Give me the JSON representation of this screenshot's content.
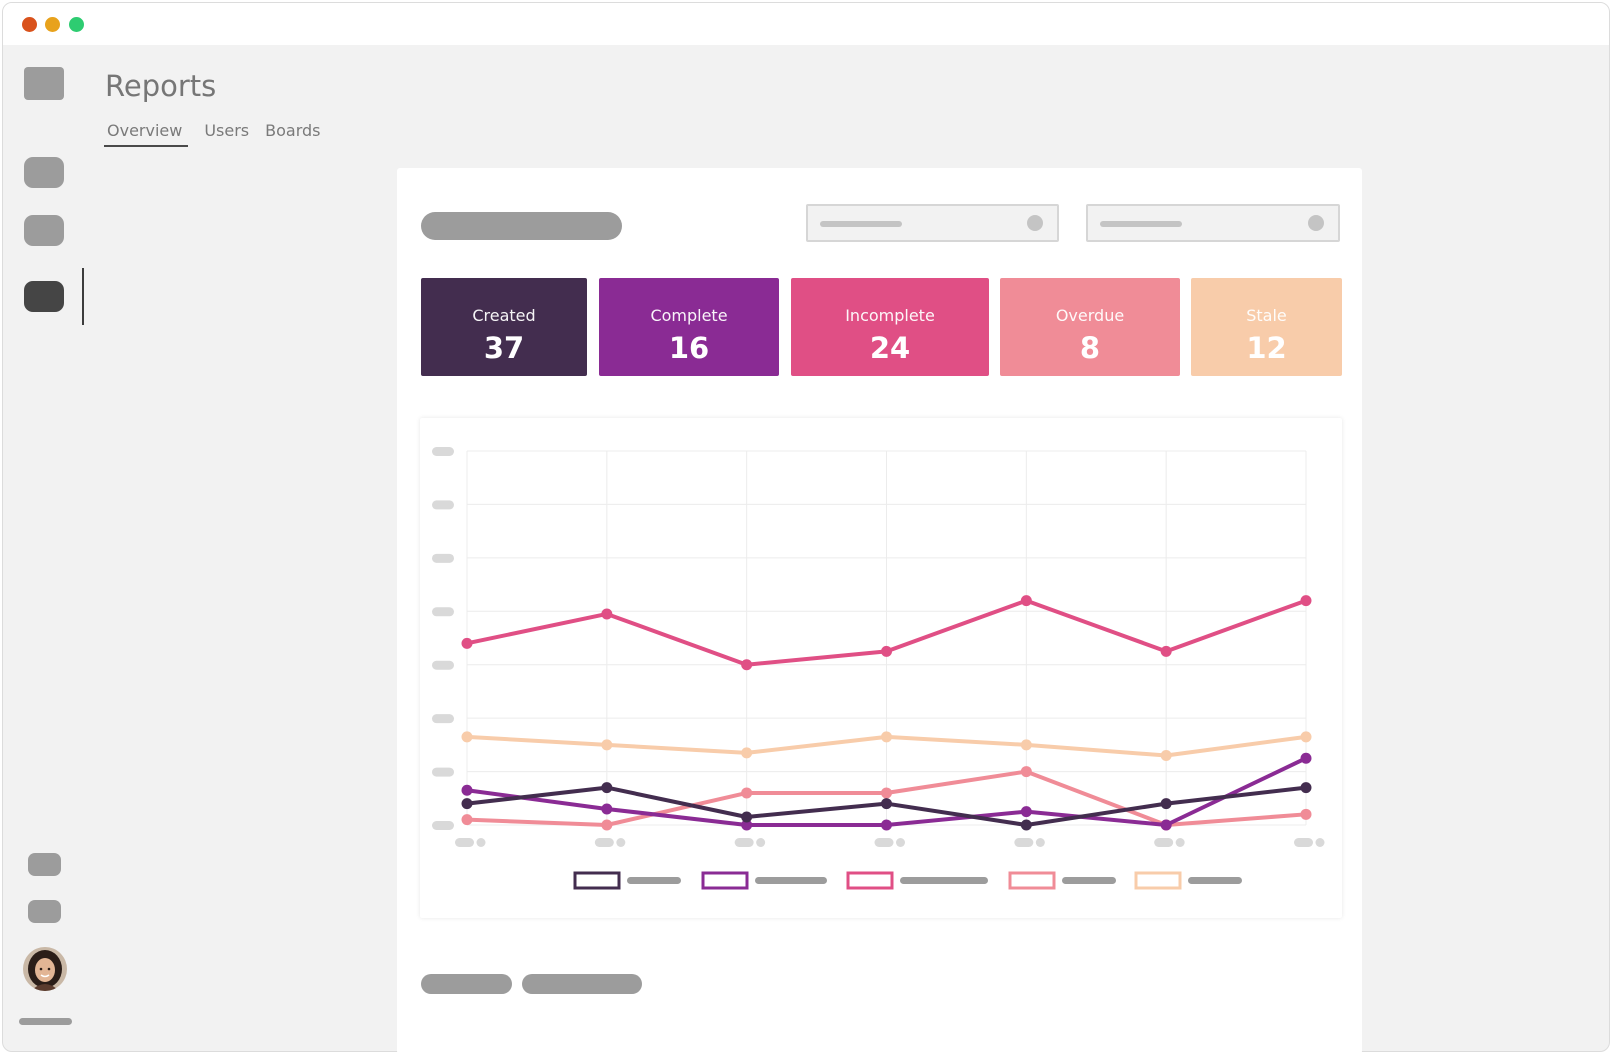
{
  "window": {
    "traffic_lights": [
      {
        "name": "close",
        "color": "#d9521c"
      },
      {
        "name": "minimize",
        "color": "#e8a21c"
      },
      {
        "name": "maximize",
        "color": "#2ecc71"
      }
    ]
  },
  "header": {
    "title": "Reports",
    "tabs": [
      {
        "label": "Overview",
        "active": true
      },
      {
        "label": "Users",
        "active": false
      },
      {
        "label": "Boards",
        "active": false
      }
    ]
  },
  "sidebar": {
    "active_index": 3,
    "avatar_icon": "user-avatar"
  },
  "stats": [
    {
      "label": "Created",
      "value": "37",
      "color": "#432d4f"
    },
    {
      "label": "Complete",
      "value": "16",
      "color": "#8a2b94"
    },
    {
      "label": "Incomplete",
      "value": "24",
      "color": "#e04f85"
    },
    {
      "label": "Overdue",
      "value": "8",
      "color": "#f08c97"
    },
    {
      "label": "Stale",
      "value": "12",
      "color": "#f8ccaa"
    }
  ],
  "chart_data": {
    "type": "line",
    "x_count": 7,
    "ylim": [
      0,
      14
    ],
    "grid": true,
    "legend_placement": "bottom",
    "series": [
      {
        "color": "#e04f85",
        "values": [
          6.8,
          7.9,
          6.0,
          6.5,
          8.4,
          6.5,
          8.4
        ]
      },
      {
        "color": "#f8ccaa",
        "values": [
          3.3,
          3.0,
          2.7,
          3.3,
          3.0,
          2.6,
          3.3
        ]
      },
      {
        "color": "#f08c97",
        "values": [
          0.2,
          0.0,
          1.2,
          1.2,
          2.0,
          0.0,
          0.4
        ]
      },
      {
        "color": "#8a2b94",
        "values": [
          1.3,
          0.6,
          0.0,
          0.0,
          0.5,
          0.0,
          2.5
        ]
      },
      {
        "color": "#432d4f",
        "values": [
          0.8,
          1.4,
          0.3,
          0.8,
          0.0,
          0.8,
          1.4
        ]
      }
    ]
  }
}
